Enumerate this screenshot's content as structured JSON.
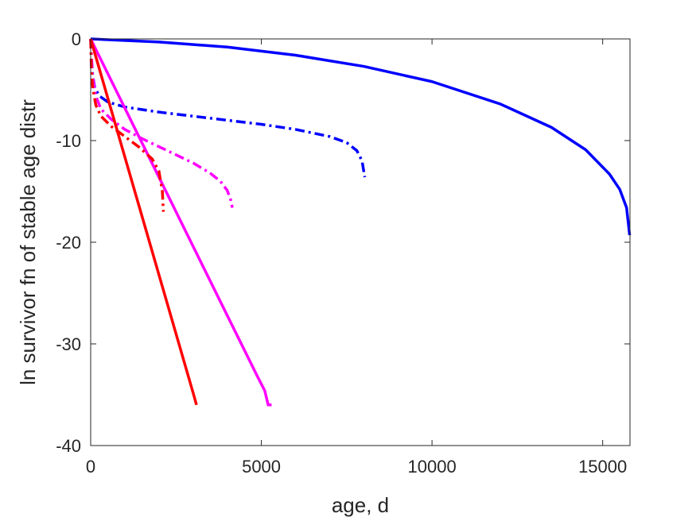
{
  "chart_data": {
    "type": "line",
    "title": "",
    "xlabel": "age, d",
    "ylabel": "ln survivor fn of stable age distr",
    "xlim": [
      0,
      15800
    ],
    "ylim": [
      -40,
      0
    ],
    "xticks": [
      0,
      5000,
      10000,
      15000
    ],
    "yticks": [
      0,
      -10,
      -20,
      -30,
      -40
    ],
    "grid": false,
    "legend": "none",
    "series": [
      {
        "color": "#0000ff",
        "style": "solid",
        "x": [
          0,
          2000,
          4000,
          6000,
          8000,
          10000,
          12000,
          13500,
          14500,
          15200,
          15500,
          15700,
          15790
        ],
        "y": [
          0,
          -0.3,
          -0.8,
          -1.6,
          -2.7,
          -4.2,
          -6.4,
          -8.7,
          -10.9,
          -13.3,
          -14.8,
          -16.6,
          -19.3
        ]
      },
      {
        "color": "#0000ff",
        "style": "dashdot",
        "x": [
          0,
          20,
          60,
          120,
          250,
          500,
          1000,
          2000,
          3000,
          4000,
          5000,
          6000,
          7000,
          7500,
          7800,
          7950,
          8030
        ],
        "y": [
          0,
          -1.8,
          -3.6,
          -4.8,
          -5.6,
          -6.2,
          -6.7,
          -7.2,
          -7.6,
          -8.0,
          -8.4,
          -8.9,
          -9.6,
          -10.2,
          -11.0,
          -12.0,
          -13.6
        ]
      },
      {
        "color": "#ff00ff",
        "style": "solid",
        "x": [
          0,
          1000,
          2000,
          3000,
          4000,
          4900,
          5100,
          5200,
          5300
        ],
        "y": [
          0,
          -6.8,
          -13.6,
          -20.4,
          -27.2,
          -33.3,
          -34.6,
          -36.0,
          -36.0
        ]
      },
      {
        "color": "#ff00ff",
        "style": "dashdot",
        "x": [
          0,
          50,
          150,
          300,
          600,
          1000,
          1500,
          2000,
          2500,
          3000,
          3500,
          3800,
          4000,
          4100,
          4150
        ],
        "y": [
          0,
          -3.5,
          -5.6,
          -6.9,
          -7.9,
          -8.9,
          -9.8,
          -10.6,
          -11.4,
          -12.2,
          -13.2,
          -14.0,
          -14.9,
          -15.8,
          -16.6
        ]
      },
      {
        "color": "#ff0000",
        "style": "solid",
        "x": [
          0,
          1000,
          2000,
          3000,
          3100
        ],
        "y": [
          0,
          -11.6,
          -23.2,
          -34.8,
          -36.0
        ]
      },
      {
        "color": "#ff0000",
        "style": "dashdot",
        "x": [
          0,
          20,
          60,
          150,
          300,
          600,
          1000,
          1400,
          1800,
          2000,
          2100,
          2130
        ],
        "y": [
          0,
          -3.0,
          -4.8,
          -6.5,
          -7.6,
          -8.6,
          -9.6,
          -10.6,
          -11.8,
          -13.0,
          -15.0,
          -17.0
        ]
      }
    ]
  }
}
